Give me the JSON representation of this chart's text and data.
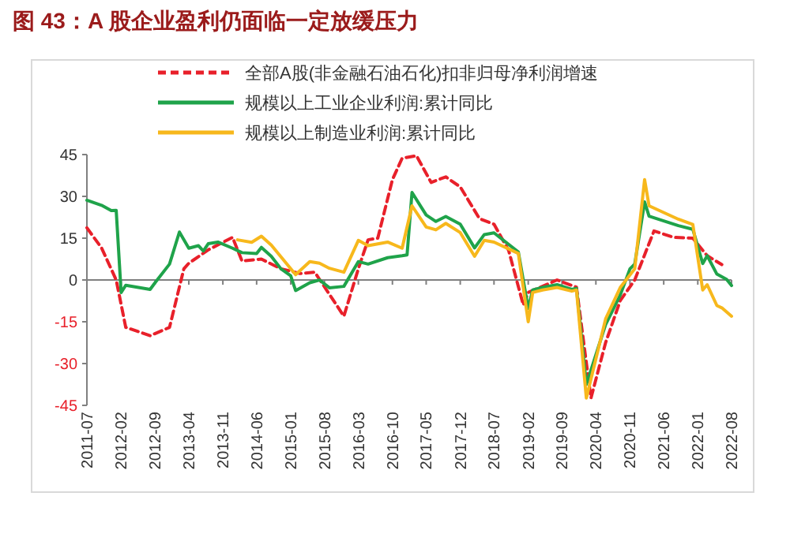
{
  "chart_data": {
    "type": "line",
    "title": "图 43：A 股企业盈利仍面临一定放缓压力",
    "xlim": [
      "2011-07",
      "2022-08"
    ],
    "xticks": [
      "2011-07",
      "2012-02",
      "2012-09",
      "2013-04",
      "2013-11",
      "2014-06",
      "2015-01",
      "2015-08",
      "2016-03",
      "2016-10",
      "2017-05",
      "2017-12",
      "2018-07",
      "2019-02",
      "2019-09",
      "2020-04",
      "2020-11",
      "2021-06",
      "2022-01",
      "2022-08"
    ],
    "ylim": [
      -45,
      45
    ],
    "yticks": [
      -45,
      -30,
      -15,
      0,
      15,
      30,
      45
    ],
    "legend": "top",
    "series": [
      {
        "name": "全部A股(非金融石油石化)扣非归母净利润增速",
        "color": "#e8202a",
        "line_style": "dashed",
        "x": [
          "2011-07",
          "2011-10",
          "2012-01",
          "2012-03",
          "2012-08",
          "2012-12",
          "2013-03",
          "2013-04",
          "2013-08",
          "2014-01",
          "2014-03",
          "2014-07",
          "2014-11",
          "2015-03",
          "2015-06",
          "2015-12",
          "2016-03",
          "2016-05",
          "2016-07",
          "2016-10",
          "2016-12",
          "2017-03",
          "2017-06",
          "2017-09",
          "2017-12",
          "2018-04",
          "2018-07",
          "2018-10",
          "2019-01",
          "2019-02",
          "2019-08",
          "2019-12",
          "2020-03",
          "2020-06",
          "2020-09",
          "2020-12",
          "2021-04",
          "2021-08",
          "2021-12",
          "2022-03",
          "2022-06"
        ],
        "values": [
          18.7,
          11.5,
          0,
          -17,
          -20,
          -17,
          4,
          6,
          10.8,
          15.3,
          6.8,
          7.5,
          4,
          2.3,
          2.8,
          -13,
          4,
          14.4,
          15,
          36,
          43.7,
          44.6,
          35,
          37,
          33.4,
          22,
          20,
          10.6,
          -9,
          -4.5,
          0,
          -2.6,
          -42.4,
          -22.5,
          -7.4,
          0,
          17.6,
          15.3,
          15,
          8.7,
          5.5
        ]
      },
      {
        "name": "规模以上工业企业利润:累计同比",
        "color": "#1fa34a",
        "line_style": "solid",
        "x": [
          "2011-07",
          "2011-10",
          "2011-12",
          "2012-01",
          "2012-02",
          "2012-03",
          "2012-08",
          "2012-09",
          "2012-12",
          "2013-02",
          "2013-04",
          "2013-06",
          "2013-07",
          "2013-08",
          "2013-10",
          "2014-01",
          "2014-03",
          "2014-06",
          "2014-07",
          "2014-09",
          "2014-11",
          "2015-01",
          "2015-02",
          "2015-05",
          "2015-07",
          "2015-09",
          "2015-12",
          "2016-03",
          "2016-05",
          "2016-09",
          "2016-12",
          "2017-01",
          "2017-02",
          "2017-05",
          "2017-07",
          "2017-09",
          "2017-12",
          "2018-03",
          "2018-05",
          "2018-07",
          "2018-12",
          "2019-02",
          "2019-03",
          "2019-05",
          "2019-08",
          "2019-11",
          "2019-12",
          "2020-02",
          "2020-06",
          "2020-09",
          "2020-11",
          "2020-12",
          "2021-02",
          "2021-03",
          "2021-09",
          "2021-12",
          "2022-02",
          "2022-03",
          "2022-05",
          "2022-07",
          "2022-08"
        ],
        "values": [
          28.6,
          26.8,
          24.9,
          25,
          -4.5,
          -1.9,
          -3.4,
          -1,
          5.7,
          17.2,
          11.4,
          12.3,
          10.4,
          13,
          13.6,
          11.4,
          9.8,
          9.5,
          11.7,
          8.5,
          4,
          1.5,
          -3.8,
          -1,
          0,
          -2.8,
          -2.3,
          6.6,
          5.7,
          8,
          8.7,
          9,
          31.4,
          23.3,
          21,
          22.8,
          20,
          11.5,
          16.3,
          16.9,
          10,
          -10.2,
          -3.6,
          -2.7,
          -1.7,
          -3.4,
          -3,
          -37.5,
          -16,
          -5.4,
          4,
          5.7,
          28,
          22.9,
          19.5,
          18.2,
          5.9,
          8.7,
          2.1,
          0.2,
          -2
        ]
      },
      {
        "name": "规模以上制造业利润:累计同比",
        "color": "#f7b81c",
        "line_style": "solid",
        "x": [
          "2014-02",
          "2014-05",
          "2014-07",
          "2014-09",
          "2015-02",
          "2015-05",
          "2015-07",
          "2015-09",
          "2015-12",
          "2016-03",
          "2016-05",
          "2016-09",
          "2016-12",
          "2017-02",
          "2017-05",
          "2017-07",
          "2017-09",
          "2017-12",
          "2018-03",
          "2018-05",
          "2018-07",
          "2018-12",
          "2019-02",
          "2019-03",
          "2019-05",
          "2019-08",
          "2019-11",
          "2019-12",
          "2020-02",
          "2020-06",
          "2020-09",
          "2020-12",
          "2021-02",
          "2021-03",
          "2021-09",
          "2021-12",
          "2022-02",
          "2022-03",
          "2022-05",
          "2022-06",
          "2022-08"
        ],
        "values": [
          14.4,
          13.5,
          15.7,
          12.5,
          1.9,
          6.6,
          6,
          4.2,
          2.8,
          14.2,
          12.3,
          13.6,
          11.4,
          26.6,
          19,
          18,
          20.3,
          17,
          8.5,
          14.2,
          13.6,
          9.5,
          -15,
          -4.5,
          -3.6,
          -2.7,
          -4,
          -3.6,
          -42.4,
          -14,
          -2.7,
          4,
          36,
          26.6,
          21.8,
          19.9,
          -3.6,
          -1.7,
          -9.2,
          -10,
          -13
        ]
      }
    ]
  }
}
